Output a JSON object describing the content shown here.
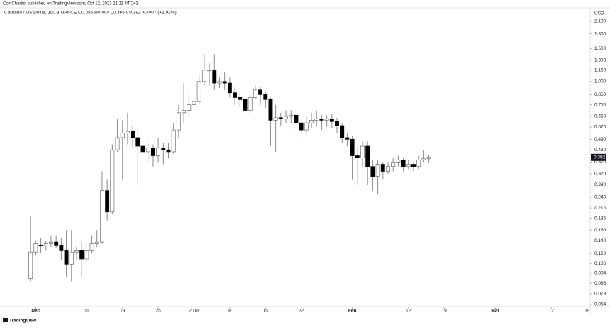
{
  "publisher": "CoinChartist published on TradingView.com, Oct 12, 2023 21:11 UTC+3",
  "footer": "TradingView",
  "chart_data": {
    "type": "candlestick",
    "title": "Cardano / US Dollar, 1D, BINANCE  O0.385 H0.404 L0.365 C0.392 +0.007 (+1.92%)",
    "y_axis_label": "USD",
    "log_scale": true,
    "grid": false,
    "up_color": "#ffffff",
    "down_color": "#000000",
    "wick_color": "#8a8a8a",
    "ylim": [
      0.0623,
      2.458
    ],
    "yticks": [
      {
        "value": 2.1,
        "label": "2.100"
      },
      {
        "value": 1.8,
        "label": "1.800"
      },
      {
        "value": 1.5,
        "label": "1.500"
      },
      {
        "value": 1.3,
        "label": "1.300"
      },
      {
        "value": 1.15,
        "label": "1.150"
      },
      {
        "value": 1.0,
        "label": "1.000"
      },
      {
        "value": 0.85,
        "label": "0.850"
      },
      {
        "value": 0.75,
        "label": "0.750"
      },
      {
        "value": 0.65,
        "label": "0.650"
      },
      {
        "value": 0.57,
        "label": "0.570"
      },
      {
        "value": 0.49,
        "label": "0.490"
      },
      {
        "value": 0.43,
        "label": "0.430"
      },
      {
        "value": 0.37,
        "label": "0.370"
      },
      {
        "value": 0.32,
        "label": "0.320"
      },
      {
        "value": 0.28,
        "label": "0.280"
      },
      {
        "value": 0.24,
        "label": "0.240"
      },
      {
        "value": 0.21,
        "label": "0.210"
      },
      {
        "value": 0.185,
        "label": "0.185"
      },
      {
        "value": 0.16,
        "label": "0.160"
      },
      {
        "value": 0.14,
        "label": "0.140"
      },
      {
        "value": 0.12,
        "label": "0.120"
      },
      {
        "value": 0.106,
        "label": "0.106"
      },
      {
        "value": 0.094,
        "label": "0.094"
      },
      {
        "value": 0.083,
        "label": "0.083"
      },
      {
        "value": 0.073,
        "label": "0.073"
      },
      {
        "value": 0.064,
        "label": "0.064"
      }
    ],
    "xlim": [
      -6,
      109.6
    ],
    "xticks": [
      {
        "value": 1,
        "label": "Dec"
      },
      {
        "value": 11,
        "label": "11"
      },
      {
        "value": 18,
        "label": "18"
      },
      {
        "value": 25,
        "label": "25"
      },
      {
        "value": 32,
        "label": "2018"
      },
      {
        "value": 39,
        "label": "8"
      },
      {
        "value": 46,
        "label": "15"
      },
      {
        "value": 53,
        "label": "22"
      },
      {
        "value": 63,
        "label": "Feb"
      },
      {
        "value": 74,
        "label": "12"
      },
      {
        "value": 81,
        "label": "19"
      },
      {
        "value": 91,
        "label": "Mar"
      },
      {
        "value": 102,
        "label": "12"
      },
      {
        "value": 109,
        "label": "19"
      }
    ],
    "open": [
      0.088,
      0.122,
      0.133,
      0.132,
      0.135,
      0.138,
      0.133,
      0.125,
      0.105,
      0.122,
      0.125,
      0.112,
      0.125,
      0.135,
      0.138,
      0.26,
      0.2,
      0.43,
      0.5,
      0.53,
      0.54,
      0.5,
      0.45,
      0.42,
      0.44,
      0.4,
      0.44,
      0.43,
      0.42,
      0.55,
      0.68,
      0.7,
      0.75,
      0.78,
      1.0,
      1.15,
      1.15,
      0.98,
      1.0,
      0.98,
      0.87,
      0.82,
      0.8,
      0.7,
      0.82,
      0.9,
      0.85,
      0.8,
      0.62,
      0.64,
      0.63,
      0.65,
      0.66,
      0.6,
      0.55,
      0.6,
      0.62,
      0.63,
      0.62,
      0.63,
      0.61,
      0.58,
      0.5,
      0.49,
      0.4,
      0.39,
      0.45,
      0.35,
      0.31,
      0.36,
      0.33,
      0.35,
      0.37,
      0.38,
      0.35,
      0.36,
      0.35,
      0.38,
      0.385
    ],
    "high": [
      0.19,
      0.14,
      0.145,
      0.14,
      0.15,
      0.15,
      0.145,
      0.16,
      0.16,
      0.13,
      0.14,
      0.14,
      0.15,
      0.16,
      0.33,
      0.3,
      0.46,
      0.63,
      0.62,
      0.68,
      0.58,
      0.55,
      0.5,
      0.47,
      0.46,
      0.5,
      0.47,
      0.47,
      0.6,
      0.75,
      0.98,
      0.85,
      0.95,
      1.1,
      1.4,
      1.25,
      1.4,
      1.05,
      1.12,
      1.05,
      0.93,
      0.88,
      0.86,
      0.85,
      0.95,
      0.93,
      0.88,
      0.82,
      0.75,
      0.68,
      0.7,
      0.7,
      0.7,
      0.63,
      0.65,
      0.68,
      0.7,
      0.66,
      0.66,
      0.67,
      0.64,
      0.6,
      0.53,
      0.51,
      0.45,
      0.48,
      0.48,
      0.38,
      0.38,
      0.37,
      0.37,
      0.39,
      0.4,
      0.39,
      0.38,
      0.37,
      0.4,
      0.43,
      0.404
    ],
    "low": [
      0.085,
      0.118,
      0.12,
      0.125,
      0.13,
      0.128,
      0.11,
      0.09,
      0.085,
      0.11,
      0.09,
      0.105,
      0.12,
      0.13,
      0.135,
      0.18,
      0.195,
      0.42,
      0.3,
      0.46,
      0.44,
      0.28,
      0.38,
      0.37,
      0.35,
      0.37,
      0.36,
      0.39,
      0.41,
      0.5,
      0.6,
      0.65,
      0.7,
      0.75,
      0.95,
      0.95,
      0.9,
      0.92,
      0.9,
      0.82,
      0.75,
      0.73,
      0.6,
      0.67,
      0.8,
      0.75,
      0.72,
      0.45,
      0.42,
      0.58,
      0.6,
      0.6,
      0.55,
      0.5,
      0.52,
      0.56,
      0.58,
      0.55,
      0.57,
      0.56,
      0.53,
      0.47,
      0.45,
      0.3,
      0.28,
      0.35,
      0.28,
      0.26,
      0.25,
      0.3,
      0.32,
      0.33,
      0.35,
      0.33,
      0.34,
      0.33,
      0.34,
      0.37,
      0.365
    ],
    "close": [
      0.122,
      0.135,
      0.132,
      0.135,
      0.138,
      0.133,
      0.125,
      0.105,
      0.122,
      0.125,
      0.112,
      0.125,
      0.135,
      0.138,
      0.26,
      0.2,
      0.43,
      0.5,
      0.53,
      0.54,
      0.5,
      0.45,
      0.42,
      0.44,
      0.4,
      0.44,
      0.43,
      0.42,
      0.55,
      0.68,
      0.7,
      0.75,
      0.78,
      1.0,
      1.15,
      1.15,
      0.98,
      1.0,
      0.98,
      0.87,
      0.82,
      0.8,
      0.7,
      0.82,
      0.9,
      0.85,
      0.8,
      0.62,
      0.64,
      0.63,
      0.65,
      0.66,
      0.6,
      0.55,
      0.6,
      0.62,
      0.63,
      0.62,
      0.63,
      0.61,
      0.58,
      0.5,
      0.49,
      0.4,
      0.39,
      0.45,
      0.35,
      0.31,
      0.36,
      0.33,
      0.35,
      0.37,
      0.38,
      0.35,
      0.36,
      0.35,
      0.38,
      0.385,
      0.392
    ]
  }
}
